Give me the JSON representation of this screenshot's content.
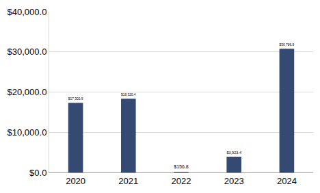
{
  "chart_data": {
    "type": "bar",
    "categories": [
      "2020",
      "2021",
      "2022",
      "2023",
      "2024"
    ],
    "values": [
      17302.9,
      18320.4,
      156.8,
      3923.4,
      30786.9
    ],
    "value_labels": [
      "$17,302.9",
      "$18,320.4",
      "$156.8",
      "$3,923.4",
      "$30,786.9"
    ],
    "data_labels": true,
    "color": "#344a72",
    "ylim": [
      0,
      40000
    ],
    "yticks": [
      {
        "value": 0,
        "label": "$0.0"
      },
      {
        "value": 10000,
        "label": "$10,000.0"
      },
      {
        "value": 20000,
        "label": "$20,000.0"
      },
      {
        "value": 30000,
        "label": "$30,000.0"
      },
      {
        "value": 40000,
        "label": "$40,000.0"
      }
    ],
    "grid": true
  }
}
